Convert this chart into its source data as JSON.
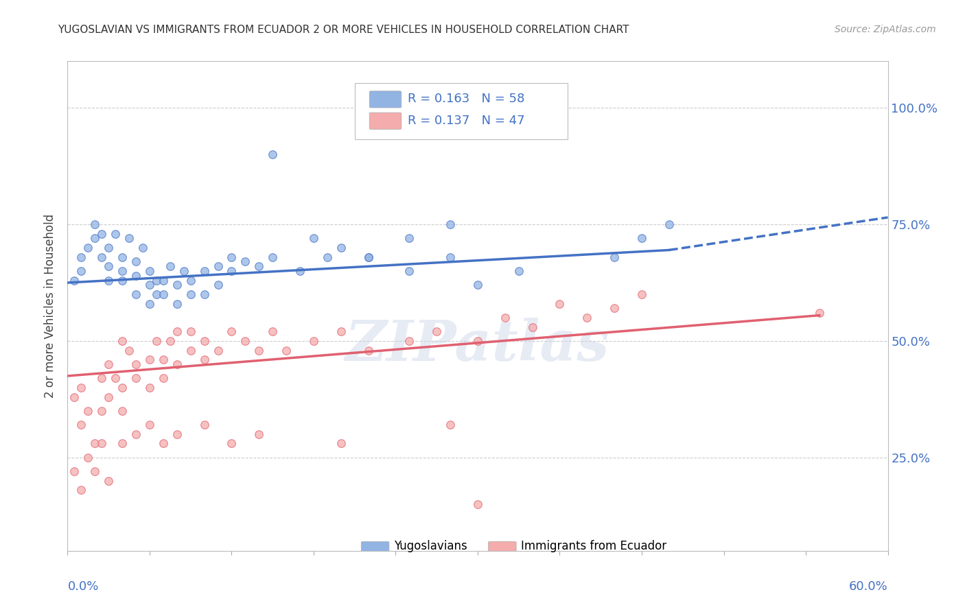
{
  "title": "YUGOSLAVIAN VS IMMIGRANTS FROM ECUADOR 2 OR MORE VEHICLES IN HOUSEHOLD CORRELATION CHART",
  "source": "Source: ZipAtlas.com",
  "ylabel": "2 or more Vehicles in Household",
  "y_tick_labels": [
    "25.0%",
    "50.0%",
    "75.0%",
    "100.0%"
  ],
  "y_tick_values": [
    0.25,
    0.5,
    0.75,
    1.0
  ],
  "x_range": [
    0.0,
    0.6
  ],
  "y_range": [
    0.05,
    1.1
  ],
  "legend1_R": "0.163",
  "legend1_N": "58",
  "legend2_R": "0.137",
  "legend2_N": "47",
  "blue_color": "#92B4E3",
  "pink_color": "#F4ACAC",
  "blue_line_color": "#4472C4",
  "pink_line_color": "#E06070",
  "text_blue": "#4472C4",
  "watermark": "ZIPatlas",
  "series1_label": "Yugoslavians",
  "series2_label": "Immigrants from Ecuador",
  "blue_scatter_x": [
    0.005,
    0.01,
    0.01,
    0.015,
    0.02,
    0.02,
    0.025,
    0.025,
    0.03,
    0.03,
    0.03,
    0.035,
    0.04,
    0.04,
    0.04,
    0.045,
    0.05,
    0.05,
    0.05,
    0.055,
    0.06,
    0.06,
    0.06,
    0.065,
    0.065,
    0.07,
    0.07,
    0.075,
    0.08,
    0.08,
    0.085,
    0.09,
    0.09,
    0.1,
    0.1,
    0.11,
    0.11,
    0.12,
    0.12,
    0.13,
    0.14,
    0.15,
    0.17,
    0.19,
    0.2,
    0.22,
    0.25,
    0.28,
    0.3,
    0.33,
    0.15,
    0.18,
    0.22,
    0.25,
    0.28,
    0.4,
    0.42,
    0.44
  ],
  "blue_scatter_y": [
    0.63,
    0.65,
    0.68,
    0.7,
    0.72,
    0.75,
    0.68,
    0.73,
    0.63,
    0.66,
    0.7,
    0.73,
    0.63,
    0.65,
    0.68,
    0.72,
    0.6,
    0.64,
    0.67,
    0.7,
    0.58,
    0.62,
    0.65,
    0.6,
    0.63,
    0.6,
    0.63,
    0.66,
    0.58,
    0.62,
    0.65,
    0.6,
    0.63,
    0.6,
    0.65,
    0.62,
    0.66,
    0.65,
    0.68,
    0.67,
    0.66,
    0.68,
    0.65,
    0.68,
    0.7,
    0.68,
    0.65,
    0.68,
    0.62,
    0.65,
    0.9,
    0.72,
    0.68,
    0.72,
    0.75,
    0.68,
    0.72,
    0.75
  ],
  "pink_scatter_x": [
    0.005,
    0.01,
    0.01,
    0.015,
    0.02,
    0.025,
    0.025,
    0.03,
    0.03,
    0.035,
    0.04,
    0.04,
    0.04,
    0.045,
    0.05,
    0.05,
    0.06,
    0.06,
    0.065,
    0.07,
    0.07,
    0.075,
    0.08,
    0.08,
    0.09,
    0.09,
    0.1,
    0.1,
    0.11,
    0.12,
    0.13,
    0.14,
    0.15,
    0.16,
    0.18,
    0.2,
    0.22,
    0.25,
    0.27,
    0.3,
    0.32,
    0.34,
    0.36,
    0.38,
    0.4,
    0.42,
    0.55
  ],
  "pink_scatter_y": [
    0.38,
    0.32,
    0.4,
    0.35,
    0.28,
    0.35,
    0.42,
    0.38,
    0.45,
    0.42,
    0.35,
    0.4,
    0.5,
    0.48,
    0.42,
    0.45,
    0.4,
    0.46,
    0.5,
    0.42,
    0.46,
    0.5,
    0.45,
    0.52,
    0.48,
    0.52,
    0.46,
    0.5,
    0.48,
    0.52,
    0.5,
    0.48,
    0.52,
    0.48,
    0.5,
    0.52,
    0.48,
    0.5,
    0.52,
    0.5,
    0.55,
    0.53,
    0.58,
    0.55,
    0.57,
    0.6,
    0.56
  ],
  "pink_scatter_x2": [
    0.005,
    0.01,
    0.015,
    0.02,
    0.025,
    0.03,
    0.04,
    0.05,
    0.06,
    0.07,
    0.08,
    0.1,
    0.12,
    0.14,
    0.2,
    0.28,
    0.3
  ],
  "pink_scatter_y2": [
    0.22,
    0.18,
    0.25,
    0.22,
    0.28,
    0.2,
    0.28,
    0.3,
    0.32,
    0.28,
    0.3,
    0.32,
    0.28,
    0.3,
    0.28,
    0.32,
    0.15
  ],
  "blue_trend_x": [
    0.0,
    0.44
  ],
  "blue_trend_y": [
    0.625,
    0.695
  ],
  "pink_trend_x": [
    0.0,
    0.55
  ],
  "pink_trend_y": [
    0.425,
    0.555
  ],
  "dashed_line_x": [
    0.44,
    0.6
  ],
  "dashed_line_y": [
    0.695,
    0.765
  ]
}
